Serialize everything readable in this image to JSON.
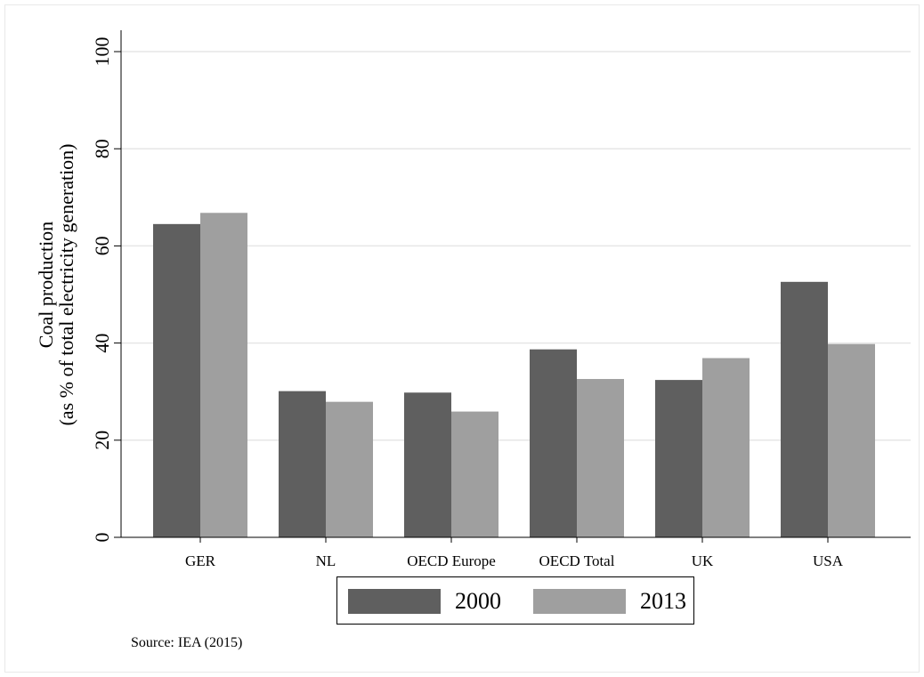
{
  "chart_data": {
    "type": "bar",
    "categories": [
      "GER",
      "NL",
      "OECD Europe",
      "OECD Total",
      "UK",
      "USA"
    ],
    "series": [
      {
        "name": "2000",
        "values": [
          64.5,
          30.1,
          29.8,
          38.7,
          32.4,
          52.6
        ],
        "color": "#5f5f5f"
      },
      {
        "name": "2013",
        "values": [
          66.8,
          27.9,
          25.9,
          32.6,
          36.9,
          39.8
        ],
        "color": "#9f9f9f"
      }
    ],
    "ylabel_line1": "Coal production",
    "ylabel_line2": "(as % of total electricity generation)",
    "xlabel": "",
    "ylim": [
      0,
      100
    ],
    "yticks": [
      0,
      20,
      40,
      60,
      80,
      100
    ],
    "grid": true,
    "legend_position": "bottom"
  },
  "source_note": "Source: IEA (2015)"
}
